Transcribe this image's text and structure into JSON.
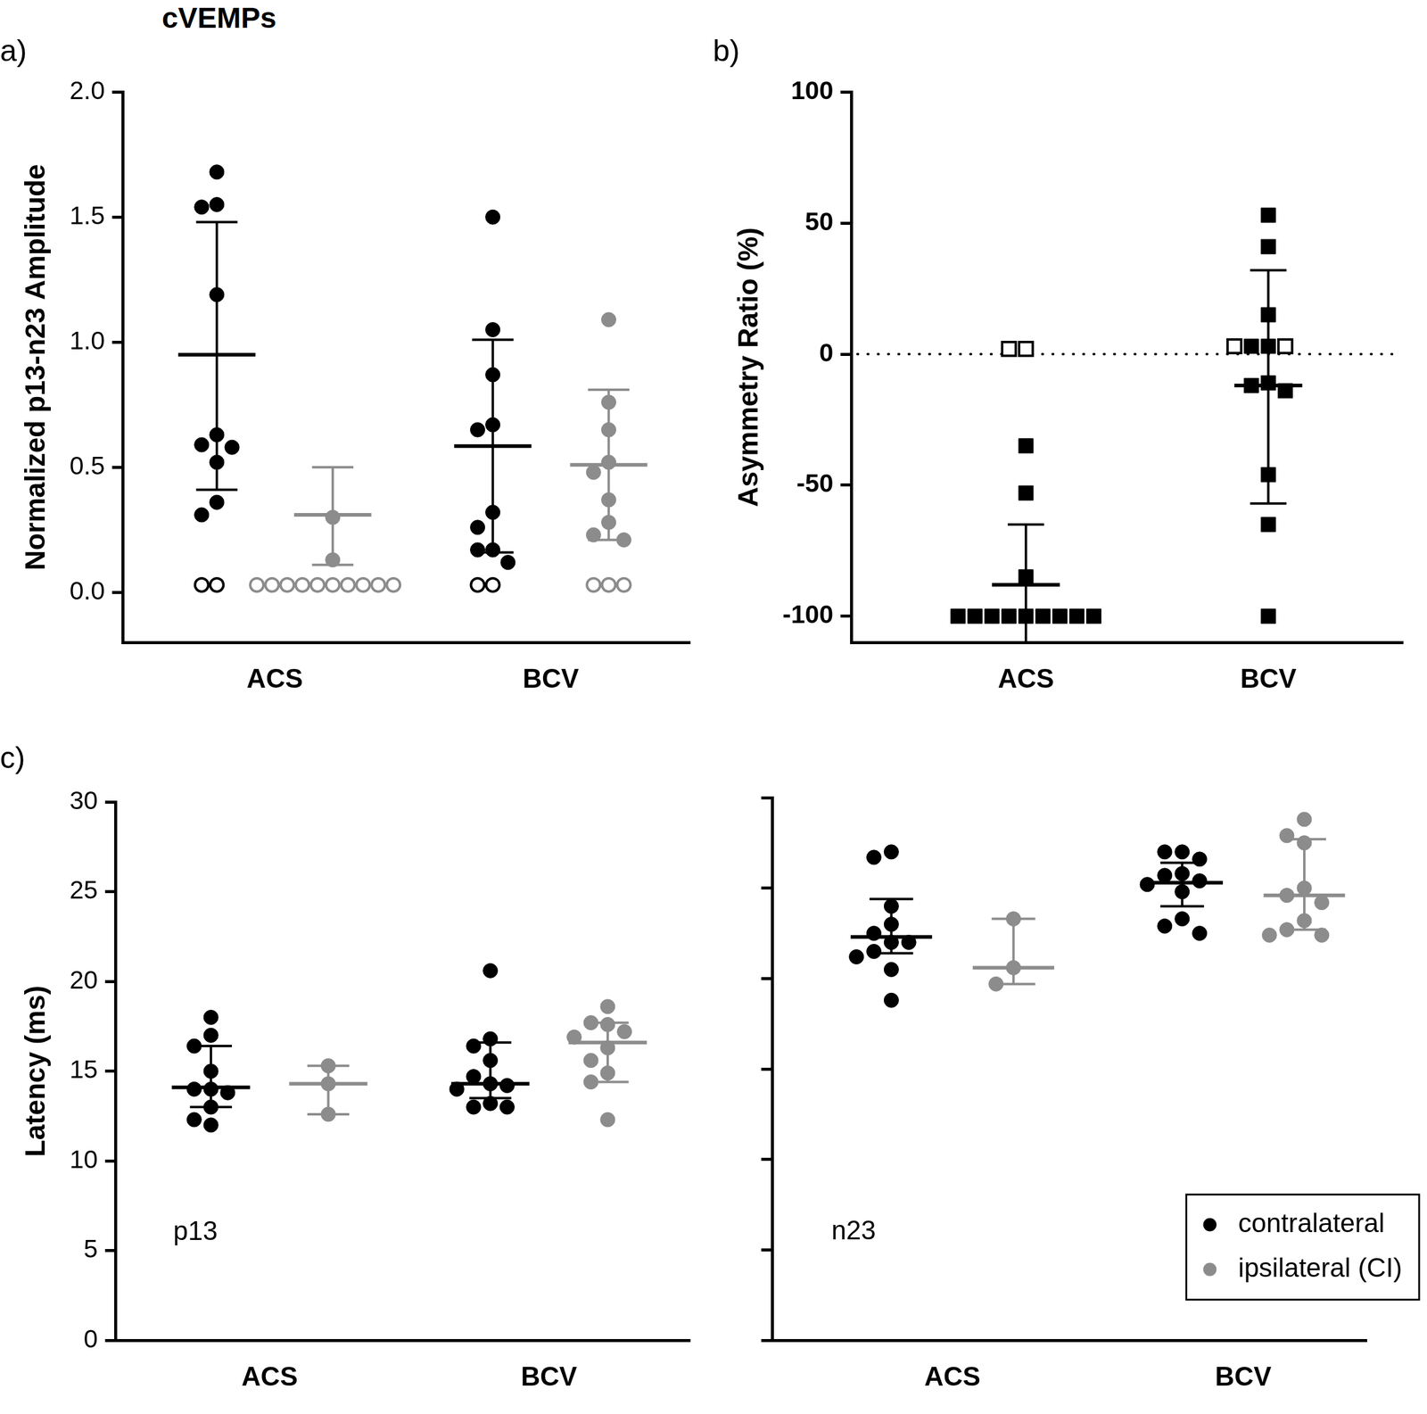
{
  "title": "cVEMPs",
  "chart_data": [
    {
      "panel": "a)",
      "type": "scatter",
      "y_label": "Normalized p13-n23 Amplitude",
      "categories": [
        "ACS",
        "BCV"
      ],
      "ylim": [
        -0.2,
        2.0
      ],
      "yticks": [
        {
          "value": 0,
          "label": "0.0"
        },
        {
          "value": 0.5,
          "label": "0.5"
        },
        {
          "value": 1,
          "label": "1.0"
        },
        {
          "value": 1.5,
          "label": "1.5"
        },
        {
          "value": 2,
          "label": "2.0"
        }
      ],
      "grid": false,
      "series": [
        {
          "color": "#000000",
          "marker": "circle",
          "values": [
            [
              1.68,
              1.55,
              1.54,
              1.19,
              0.63,
              0.59,
              0.58,
              0.52,
              0.36,
              0.31
            ],
            [
              1.5,
              1.05,
              0.87,
              0.67,
              0.65,
              0.32,
              0.26,
              0.17,
              0.17,
              0.12
            ]
          ],
          "open_values": [
            [
              0.03,
              0.03
            ],
            [
              0.03,
              0.03
            ]
          ],
          "center": [
            0.95,
            0.585
          ],
          "lower": [
            0.41,
            0.16
          ],
          "upper": [
            1.48,
            1.01
          ]
        },
        {
          "color": "#8c8c8c",
          "marker": "circle",
          "values": [
            [
              0.3,
              0.13
            ],
            [
              1.09,
              0.76,
              0.65,
              0.52,
              0.48,
              0.37,
              0.28,
              0.23,
              0.21
            ]
          ],
          "open_values": [
            [
              0.03,
              0.03,
              0.03,
              0.03,
              0.03,
              0.03,
              0.03,
              0.03,
              0.03,
              0.03
            ],
            [
              0.03,
              0.03,
              0.03
            ]
          ],
          "center": [
            0.31,
            0.51
          ],
          "lower": [
            0.11,
            0.21
          ],
          "upper": [
            0.5,
            0.81
          ]
        }
      ]
    },
    {
      "panel": "b)",
      "type": "scatter",
      "y_label": "Asymmetry Ratio (%)",
      "categories": [
        "ACS",
        "BCV"
      ],
      "ylim": [
        -110,
        100
      ],
      "yticks": [
        -100,
        -50,
        0,
        50,
        100
      ],
      "grid": false,
      "reference_line": 0,
      "series": [
        {
          "color": "#000000",
          "marker": "square",
          "values": [
            [
              -35,
              -53,
              -85,
              -100,
              -100,
              -100,
              -100,
              -100,
              -100,
              -100,
              -100,
              -100
            ],
            [
              53,
              41,
              15,
              3,
              3,
              -11,
              -12,
              -14,
              -46,
              -65,
              -100
            ]
          ],
          "open_values": [
            [
              2,
              2
            ],
            [
              3,
              3
            ]
          ],
          "center": [
            -88,
            -12
          ],
          "lower": [
            -111,
            -57
          ],
          "upper": [
            -65,
            32
          ]
        }
      ]
    },
    {
      "panel": "c)",
      "type": "scatter",
      "y_label": "Latency (ms)",
      "annotation": "p13",
      "categories": [
        "ACS",
        "BCV"
      ],
      "ylim": [
        0,
        30
      ],
      "yticks": [
        0,
        5,
        10,
        15,
        20,
        25,
        30
      ],
      "grid": false,
      "series": [
        {
          "color": "#000000",
          "marker": "circle",
          "values": [
            [
              18.0,
              17.0,
              16.4,
              15.0,
              14.0,
              14.0,
              13.8,
              13.0,
              12.3,
              12.0
            ],
            [
              20.6,
              16.8,
              16.4,
              15.6,
              14.7,
              14.3,
              14.2,
              14.0,
              13.2,
              13.0,
              13.0
            ]
          ],
          "center": [
            14.1,
            14.3
          ],
          "lower": [
            13.0,
            13.5
          ],
          "upper": [
            16.4,
            16.6
          ]
        },
        {
          "color": "#8c8c8c",
          "marker": "circle",
          "values": [
            [
              15.3,
              14.3,
              12.6
            ],
            [
              18.6,
              17.7,
              17.6,
              17.2,
              16.9,
              16.3,
              15.6,
              14.9,
              14.4,
              12.3
            ]
          ],
          "center": [
            14.3,
            16.6
          ],
          "lower": [
            12.6,
            14.4
          ],
          "upper": [
            15.3,
            17.7
          ]
        }
      ]
    },
    {
      "type": "scatter",
      "annotation": "n23",
      "tick_labels": "x",
      "legend": "lower right",
      "categories": [
        "ACS",
        "BCV"
      ],
      "ylim": [
        0,
        30
      ],
      "yticks": [
        0,
        5,
        10,
        15,
        20,
        25,
        30
      ],
      "grid": false,
      "series": [
        {
          "name": "contralateral",
          "color": "#000000",
          "marker": "circle",
          "values": [
            [
              27.0,
              26.7,
              24.0,
              23.0,
              22.5,
              22.0,
              22.0,
              21.5,
              21.2,
              20.5,
              18.8
            ],
            [
              27.0,
              27.0,
              26.6,
              25.8,
              25.7,
              25.4,
              25.2,
              24.8,
              23.3,
              22.9,
              22.5
            ]
          ],
          "center": [
            22.3,
            25.3
          ],
          "lower": [
            21.4,
            24.0
          ],
          "upper": [
            24.4,
            26.4
          ]
        },
        {
          "name": "ipsilateral (CI)",
          "color": "#8c8c8c",
          "marker": "circle",
          "values": [
            [
              23.3,
              20.6,
              19.7
            ],
            [
              28.8,
              27.9,
              27.5,
              25.0,
              24.6,
              24.2,
              23.2,
              22.7,
              22.4,
              22.4
            ]
          ],
          "center": [
            20.6,
            24.6
          ],
          "lower": [
            19.7,
            22.7
          ],
          "upper": [
            23.3,
            27.7
          ]
        }
      ]
    }
  ]
}
